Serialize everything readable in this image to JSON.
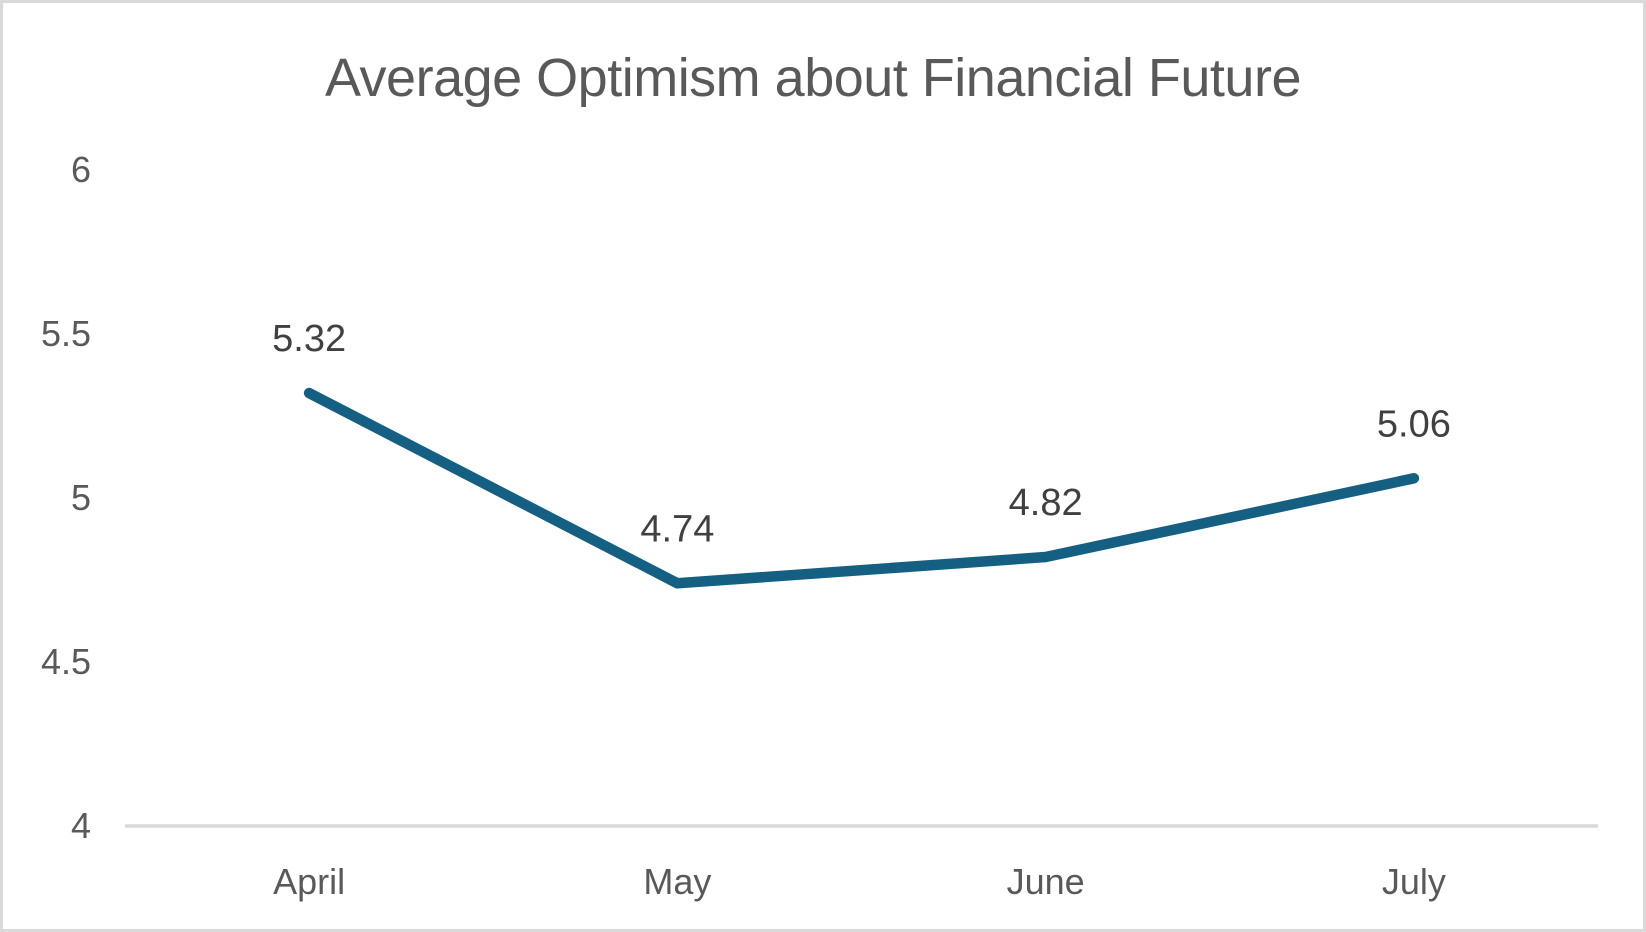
{
  "chart_data": {
    "type": "line",
    "title": "Average Optimism about Financial Future",
    "categories": [
      "April",
      "May",
      "June",
      "July"
    ],
    "values": [
      5.32,
      4.74,
      4.82,
      5.06
    ],
    "data_labels": [
      "5.32",
      "4.74",
      "4.82",
      "5.06"
    ],
    "xlabel": "",
    "ylabel": "",
    "ylim": [
      4,
      6
    ],
    "yticks": [
      4,
      4.5,
      5,
      5.5,
      6
    ],
    "ytick_labels": [
      "4",
      "4.5",
      "5",
      "5.5",
      "6"
    ],
    "legend_position": "none",
    "grid": false,
    "baseline_axis_only": true,
    "colors": {
      "line": "#156082",
      "axis_line": "#d9d9d9",
      "title_text": "#595959",
      "axis_text": "#595959",
      "data_label_text": "#404040",
      "background": "#ffffff",
      "card_border": "#d9d9d9"
    }
  }
}
